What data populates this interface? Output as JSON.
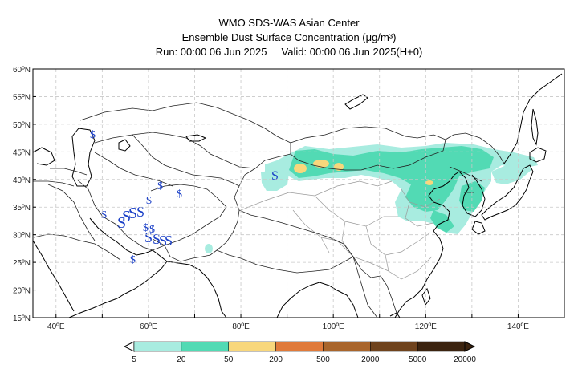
{
  "header": {
    "line1": "WMO SDS-WAS Asian Center",
    "line2": "Ensemble Dust Surface Concentration (μg/m³)",
    "run": "Run: 00:00 06 Jun 2025",
    "valid": "Valid: 00:00 06 Jun 2025(H+0)"
  },
  "map": {
    "lon_range": [
      35,
      150
    ],
    "lat_range": [
      15,
      60
    ],
    "lon_ticks": [
      "40ºE",
      "60ºE",
      "80ºE",
      "100ºE",
      "120ºE",
      "140ºE"
    ],
    "lat_ticks": [
      "60ºN",
      "55ºN",
      "50ºN",
      "45ºN",
      "40ºN",
      "35ºN",
      "30ºN",
      "25ºN",
      "20ºN",
      "15ºN"
    ],
    "grid": "dashed"
  },
  "legend": {
    "labels": [
      "5",
      "20",
      "50",
      "200",
      "500",
      "2000",
      "5000",
      "20000"
    ],
    "colors": [
      "#a8ece0",
      "#52dab4",
      "#f8d77c",
      "#e07a3a",
      "#a9652b",
      "#6f431d",
      "#3b230f"
    ]
  },
  "colors": {
    "coast": "#000000",
    "border": "#222222",
    "province": "#9a9a9a"
  }
}
